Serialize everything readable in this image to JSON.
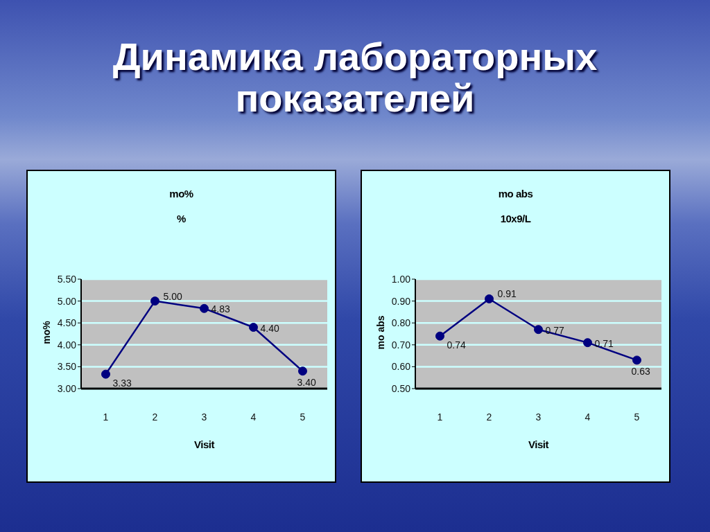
{
  "chart_data": [
    {
      "type": "other",
      "title": "Динамика лабораторных показателей"
    },
    {
      "type": "line",
      "title": "mo%",
      "subtitle": "%",
      "xlabel": "Visit",
      "ylabel": "mo%",
      "categories": [
        "1",
        "2",
        "3",
        "4",
        "5"
      ],
      "values": [
        3.33,
        5.0,
        4.83,
        4.4,
        3.4
      ],
      "value_labels": [
        "3.33",
        "5.00",
        "4.83",
        "4.40",
        "3.40"
      ],
      "color": "#000080",
      "ylim": [
        3,
        5.5
      ],
      "yticks": [
        {
          "value": 3,
          "label": "3.00"
        },
        {
          "value": 3.5,
          "label": "3.50"
        },
        {
          "value": 4,
          "label": "4.00"
        },
        {
          "value": 4.5,
          "label": "4.50"
        },
        {
          "value": 5,
          "label": "5.00"
        },
        {
          "value": 5.5,
          "label": "5.50"
        }
      ],
      "grid": "y",
      "marker": "circle",
      "line_style": "solid"
    },
    {
      "type": "line",
      "title": "mo abs",
      "subtitle": "10x9/L",
      "xlabel": "Visit",
      "ylabel": "mo abs",
      "categories": [
        "1",
        "2",
        "3",
        "4",
        "5"
      ],
      "values": [
        0.74,
        0.91,
        0.77,
        0.71,
        0.63
      ],
      "value_labels": [
        "0.74",
        "0.91",
        "0.77",
        "0.71",
        "0.63"
      ],
      "color": "#000080",
      "ylim": [
        0.5,
        1.0
      ],
      "yticks": [
        {
          "value": 0.5,
          "label": "0.50"
        },
        {
          "value": 0.6,
          "label": "0.60"
        },
        {
          "value": 0.7,
          "label": "0.70"
        },
        {
          "value": 0.8,
          "label": "0.80"
        },
        {
          "value": 0.9,
          "label": "0.90"
        },
        {
          "value": 1.0,
          "label": "1.00"
        }
      ],
      "grid": "y",
      "marker": "circle",
      "line_style": "solid"
    }
  ]
}
